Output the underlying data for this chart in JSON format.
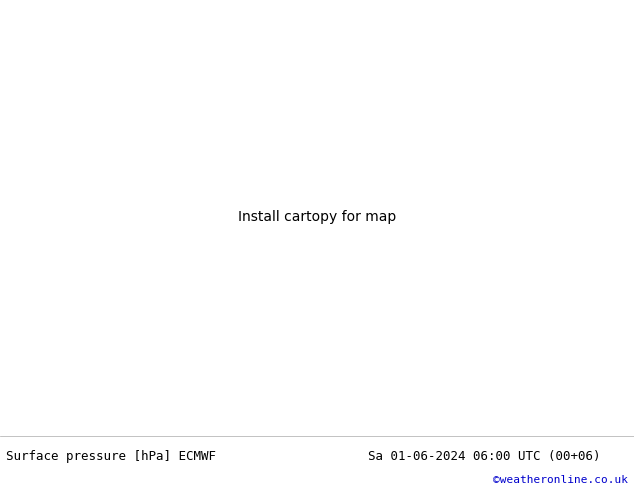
{
  "title_left": "Surface pressure [hPa] ECMWF",
  "title_right": "Sa 01-06-2024 06:00 UTC (00+06)",
  "credit": "©weatheronline.co.uk",
  "footer_bg": "#e0e0e0",
  "footer_text_color": "#000000",
  "credit_color": "#0000cc",
  "footer_fontsize": 9,
  "credit_fontsize": 8,
  "figsize": [
    6.34,
    4.9
  ],
  "dpi": 100,
  "lon_min": -30,
  "lon_max": 42,
  "lat_min": 27,
  "lat_max": 73,
  "sea_color": "#c8d8e8",
  "land_color": "#b4d08c",
  "coast_color": "#888888",
  "border_color": "#aaaaaa",
  "isobar_red_color": "#dd0000",
  "isobar_blue_color": "#0000cc",
  "isobar_black_color": "#000000",
  "isobar_lw": 1.3,
  "label_fontsize": 7.5,
  "label_fontweight": "bold"
}
